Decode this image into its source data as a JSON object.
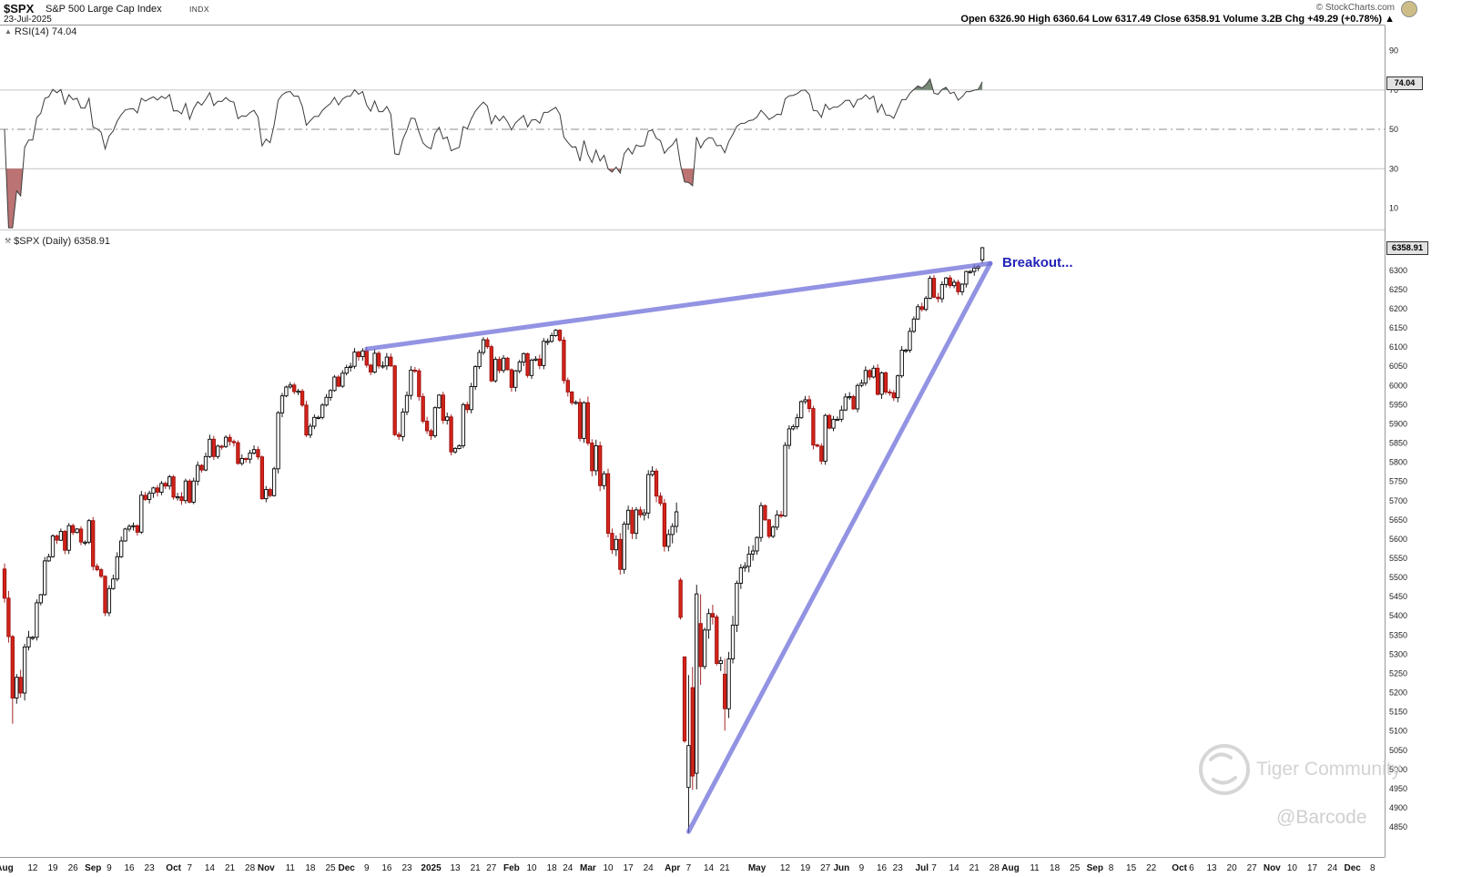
{
  "header": {
    "symbol": "$SPX",
    "name": "S&P 500 Large Cap Index",
    "exchange": "INDX",
    "date": "23-Jul-2025",
    "copyright": "© StockCharts.com",
    "quote_line": "Open 6326.90 High 6360.64 Low 6317.49 Close 6358.91 Volume 3.2B Chg +49.29 (+0.78%) ▲"
  },
  "rsi_panel": {
    "label": "RSI(14) 74.04",
    "value_box": "74.04"
  },
  "price_panel": {
    "label": "$SPX (Daily) 6358.91",
    "value_box": "6358.91"
  },
  "annotation": {
    "text": "Breakout...",
    "color": "#2323b8"
  },
  "watermark": {
    "brand": "Tiger Community",
    "handle": "@Barcode"
  },
  "chart_data": [
    {
      "type": "line",
      "title": "RSI(14)",
      "period": 14,
      "derived_from": "closes of price panel",
      "ylim": [
        0,
        100
      ],
      "ticks": [
        90,
        70,
        50,
        30,
        10
      ],
      "gridlines": {
        "overbought": 70,
        "midline": 50,
        "oversold": 30
      },
      "last_value": 74.04,
      "legend_position": "top-left"
    },
    {
      "type": "candlestick",
      "title": "$SPX (Daily)",
      "last_close": 6358.91,
      "last_ohlc": [
        6326.9,
        6360.64,
        6317.49,
        6358.91
      ],
      "ylim": [
        4772,
        6392
      ],
      "price_ticks": [
        6300,
        6250,
        6200,
        6150,
        6100,
        6050,
        6000,
        5950,
        5900,
        5850,
        5800,
        5750,
        5700,
        5650,
        5600,
        5550,
        5500,
        5450,
        5400,
        5350,
        5300,
        5250,
        5200,
        5150,
        5100,
        5050,
        5000,
        4950,
        4900,
        4850
      ],
      "first_open": 5522,
      "closes": [
        5446,
        5346,
        5186,
        5240,
        5199,
        5319,
        5344,
        5344,
        5434,
        5455,
        5543,
        5554,
        5608,
        5597,
        5620,
        5571,
        5635,
        5617,
        5626,
        5592,
        5592,
        5648,
        5529,
        5520,
        5503,
        5408,
        5471,
        5496,
        5554,
        5595,
        5626,
        5633,
        5635,
        5618,
        5714,
        5703,
        5719,
        5733,
        5722,
        5745,
        5738,
        5762,
        5709,
        5710,
        5700,
        5751,
        5696,
        5751,
        5792,
        5780,
        5815,
        5860,
        5815,
        5842,
        5841,
        5865,
        5854,
        5851,
        5797,
        5810,
        5808,
        5824,
        5833,
        5814,
        5705,
        5729,
        5713,
        5783,
        5929,
        5973,
        5996,
        6001,
        5984,
        5985,
        5949,
        5871,
        5894,
        5917,
        5917,
        5949,
        5969,
        5987,
        6022,
        5998,
        6032,
        6047,
        6050,
        6087,
        6075,
        6090,
        6053,
        6035,
        6084,
        6051,
        6051,
        6074,
        6051,
        5872,
        5867,
        5931,
        5974,
        6040,
        6038,
        5971,
        5907,
        5882,
        5869,
        5942,
        5975,
        5909,
        5918,
        5827,
        5836,
        5843,
        5950,
        5937,
        5997,
        6049,
        6086,
        6119,
        6101,
        6012,
        6068,
        6039,
        6071,
        6041,
        5995,
        6038,
        6061,
        6083,
        6026,
        6066,
        6069,
        6052,
        6115,
        6115,
        6130,
        6144,
        6118,
        6013,
        5983,
        5955,
        5956,
        5862,
        5955,
        5850,
        5778,
        5843,
        5739,
        5770,
        5615,
        5572,
        5599,
        5521,
        5639,
        5675,
        5615,
        5676,
        5663,
        5668,
        5768,
        5777,
        5712,
        5693,
        5581,
        5612,
        5633,
        5671,
        5396,
        5074,
        5062,
        4983,
        5457,
        5268,
        5363,
        5406,
        5397,
        5276,
        5283,
        5158,
        5288,
        5376,
        5485,
        5525,
        5529,
        5561,
        5569,
        5604,
        5687,
        5650,
        5607,
        5631,
        5663,
        5660,
        5844,
        5887,
        5893,
        5916,
        5958,
        5963,
        5940,
        5845,
        5842,
        5803,
        5922,
        5889,
        5912,
        5912,
        5936,
        5970,
        5971,
        5939,
        6000,
        6006,
        6039,
        6022,
        6045,
        5977,
        6033,
        5983,
        5981,
        5968,
        6025,
        6092,
        6092,
        6141,
        6173,
        6205,
        6198,
        6227,
        6279,
        6230,
        6226,
        6263,
        6280,
        6260,
        6269,
        6244,
        6264,
        6297,
        6297,
        6306,
        6310,
        6358.91
      ],
      "ohlc_overrides": {
        "2": [
          5346,
          5350,
          5119,
          5186
        ],
        "168": [
          5493,
          5499,
          5390,
          5396
        ],
        "169": [
          5293,
          5294,
          5069,
          5074
        ],
        "170": [
          4953,
          5246,
          4835,
          5062
        ],
        "171": [
          5213,
          5267,
          4947,
          4983
        ],
        "172": [
          4990,
          5481,
          4948,
          5457
        ],
        "173": [
          5380,
          5456,
          5220,
          5268
        ],
        "179": [
          5248,
          5288,
          5101,
          5158
        ],
        "243": [
          6326.9,
          6360.64,
          6317.49,
          6358.91
        ]
      },
      "x_labels": [
        [
          "Aug",
          0,
          1
        ],
        [
          "12",
          7,
          0
        ],
        [
          "19",
          12,
          0
        ],
        [
          "26",
          17,
          0
        ],
        [
          "Sep",
          22,
          1
        ],
        [
          "9",
          26,
          0
        ],
        [
          "16",
          31,
          0
        ],
        [
          "23",
          36,
          0
        ],
        [
          "Oct",
          42,
          1
        ],
        [
          "7",
          46,
          0
        ],
        [
          "14",
          51,
          0
        ],
        [
          "21",
          56,
          0
        ],
        [
          "28",
          61,
          0
        ],
        [
          "Nov",
          65,
          1
        ],
        [
          "11",
          71,
          0
        ],
        [
          "18",
          76,
          0
        ],
        [
          "25",
          81,
          0
        ],
        [
          "Dec",
          85,
          1
        ],
        [
          "9",
          90,
          0
        ],
        [
          "16",
          95,
          0
        ],
        [
          "23",
          100,
          0
        ],
        [
          "2025",
          106,
          1
        ],
        [
          "13",
          112,
          0
        ],
        [
          "21",
          117,
          0
        ],
        [
          "27",
          121,
          0
        ],
        [
          "Feb",
          126,
          1
        ],
        [
          "10",
          131,
          0
        ],
        [
          "18",
          136,
          0
        ],
        [
          "24",
          140,
          0
        ],
        [
          "Mar",
          145,
          1
        ],
        [
          "10",
          150,
          0
        ],
        [
          "17",
          155,
          0
        ],
        [
          "24",
          160,
          0
        ],
        [
          "Apr",
          166,
          1
        ],
        [
          "7",
          170,
          0
        ],
        [
          "14",
          175,
          0
        ],
        [
          "21",
          179,
          0
        ],
        [
          "May",
          187,
          1
        ],
        [
          "12",
          194,
          0
        ],
        [
          "19",
          199,
          0
        ],
        [
          "27",
          204,
          0
        ],
        [
          "Jun",
          208,
          1
        ],
        [
          "9",
          213,
          0
        ],
        [
          "16",
          218,
          0
        ],
        [
          "23",
          222,
          0
        ],
        [
          "Jul",
          228,
          1
        ],
        [
          "7",
          231,
          0
        ],
        [
          "14",
          236,
          0
        ],
        [
          "21",
          241,
          0
        ],
        [
          "28",
          246,
          0
        ],
        [
          "Aug",
          250,
          1
        ],
        [
          "11",
          256,
          0
        ],
        [
          "18",
          261,
          0
        ],
        [
          "25",
          266,
          0
        ],
        [
          "Sep",
          271,
          1
        ],
        [
          "8",
          275,
          0
        ],
        [
          "15",
          280,
          0
        ],
        [
          "22",
          285,
          0
        ],
        [
          "Oct",
          292,
          1
        ],
        [
          "6",
          295,
          0
        ],
        [
          "13",
          300,
          0
        ],
        [
          "20",
          305,
          0
        ],
        [
          "27",
          310,
          0
        ],
        [
          "Nov",
          315,
          1
        ],
        [
          "10",
          320,
          0
        ],
        [
          "17",
          325,
          0
        ],
        [
          "24",
          330,
          0
        ],
        [
          "Dec",
          335,
          1
        ],
        [
          "8",
          340,
          0
        ]
      ],
      "trendlines": [
        {
          "from_day": 90,
          "from_price": 6095,
          "to_day": 245,
          "to_price": 6318
        },
        {
          "from_day": 170,
          "from_price": 4838,
          "to_day": 245,
          "to_price": 6318
        }
      ],
      "annotation": "Breakout..."
    }
  ]
}
